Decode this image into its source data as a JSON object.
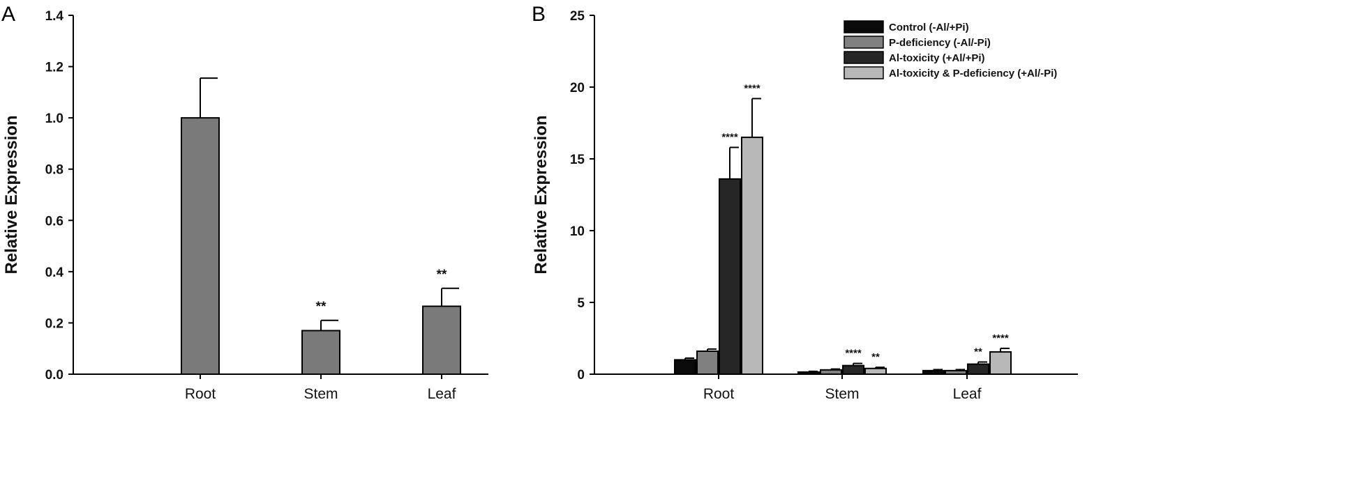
{
  "chart_data": [
    {
      "panel": "A",
      "type": "bar",
      "ylabel": "Relative Expression",
      "ylim": [
        0,
        1.4
      ],
      "yticks": [
        "0.0",
        "0.2",
        "0.4",
        "0.6",
        "0.8",
        "1.0",
        "1.2",
        "1.4"
      ],
      "categories": [
        "Root",
        "Stem",
        "Leaf"
      ],
      "series": [
        {
          "name": "Relative Expression",
          "color": "#7a7a7a",
          "values": [
            1.0,
            0.17,
            0.265
          ],
          "errors": [
            0.155,
            0.04,
            0.07
          ],
          "significance": [
            "",
            "**",
            "**"
          ]
        }
      ]
    },
    {
      "panel": "B",
      "type": "bar",
      "ylabel": "Relative Expression",
      "ylim": [
        0,
        25
      ],
      "yticks": [
        "0",
        "5",
        "10",
        "15",
        "20",
        "25"
      ],
      "categories": [
        "Root",
        "Stem",
        "Leaf"
      ],
      "legend_position": "top-right",
      "series": [
        {
          "name": "Control  (-Al/+Pi)",
          "color": "#0a0a0a",
          "values": [
            1.0,
            0.15,
            0.25
          ],
          "errors": [
            0.12,
            0.05,
            0.07
          ],
          "significance": [
            "",
            "",
            ""
          ]
        },
        {
          "name": "P-deficiency (-Al/-Pi)",
          "color": "#808080",
          "values": [
            1.6,
            0.3,
            0.25
          ],
          "errors": [
            0.15,
            0.06,
            0.07
          ],
          "significance": [
            "",
            "",
            ""
          ]
        },
        {
          "name": "Al-toxicity (+Al/+Pi)",
          "color": "#262626",
          "values": [
            13.6,
            0.6,
            0.7
          ],
          "errors": [
            2.2,
            0.15,
            0.15
          ],
          "significance": [
            "****",
            "****",
            "**"
          ]
        },
        {
          "name": "Al-toxicity & P-deficiency  (+Al/-Pi)",
          "color": "#b8b8b8",
          "values": [
            16.5,
            0.4,
            1.55
          ],
          "errors": [
            2.7,
            0.08,
            0.25
          ],
          "significance": [
            "****",
            "**",
            "****"
          ]
        }
      ]
    }
  ]
}
